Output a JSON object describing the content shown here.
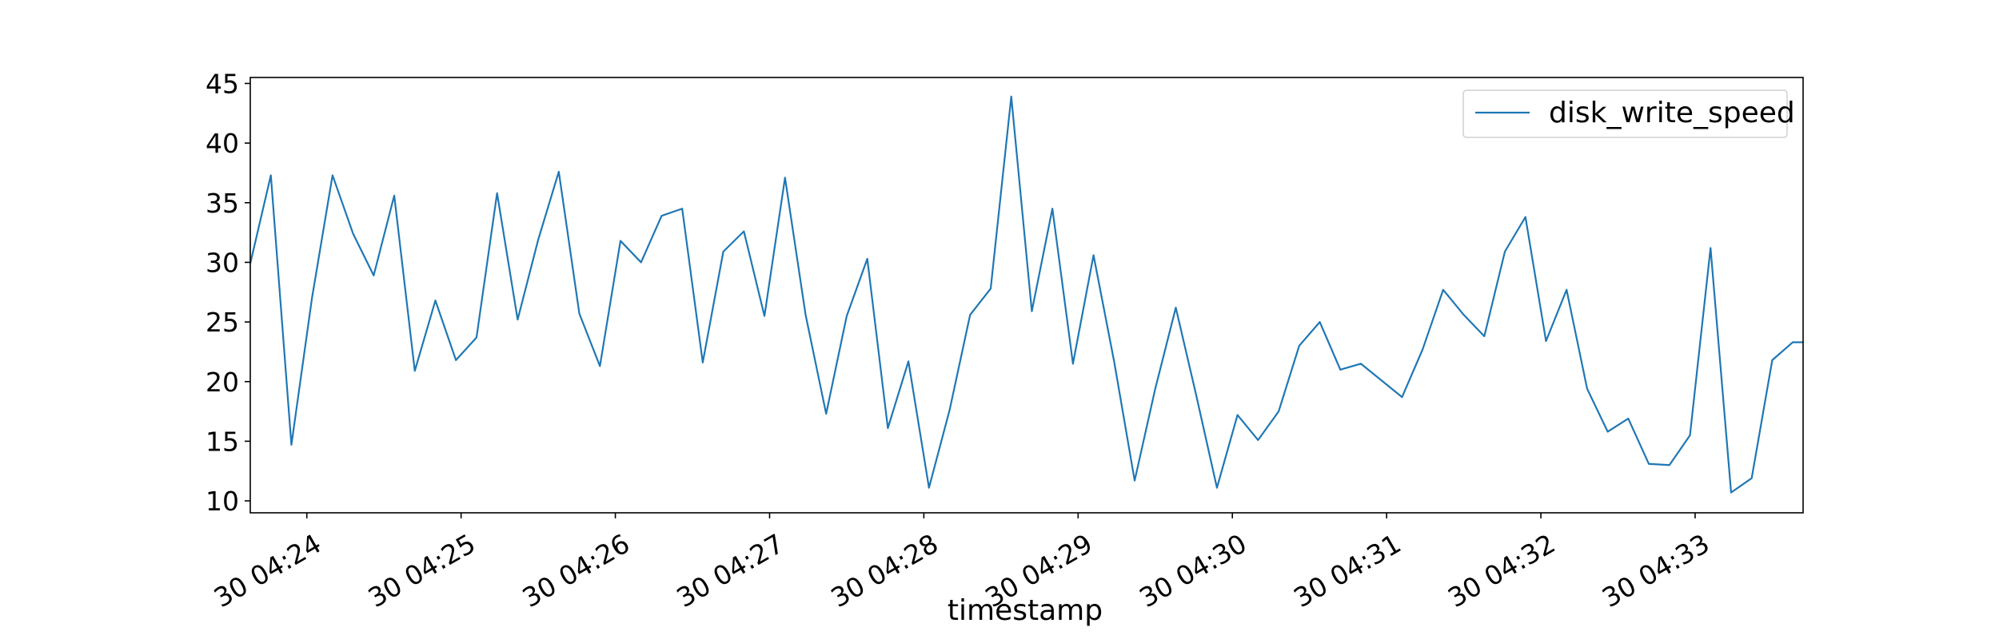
{
  "chart_data": {
    "type": "line",
    "title": "",
    "xlabel": "timestamp",
    "ylabel": "",
    "x_ticks": [
      "30 04:24",
      "30 04:25",
      "30 04:26",
      "30 04:27",
      "30 04:28",
      "30 04:29",
      "30 04:30",
      "30 04:31",
      "30 04:32",
      "30 04:33"
    ],
    "y_ticks": [
      10,
      15,
      20,
      25,
      30,
      35,
      40,
      45
    ],
    "ylim": [
      9,
      45.5
    ],
    "xlim": [
      "30 04:23:38",
      "30 04:33:42"
    ],
    "grid": false,
    "legend": {
      "position": "top-right",
      "entries": [
        "disk_write_speed"
      ]
    },
    "series": [
      {
        "name": "disk_write_speed",
        "color": "#1f77b4",
        "x": [
          "30 04:23:38",
          "30 04:23:46",
          "30 04:23:54",
          "30 04:24:02",
          "30 04:24:10",
          "30 04:24:18",
          "30 04:24:26",
          "30 04:24:34",
          "30 04:24:42",
          "30 04:24:50",
          "30 04:24:58",
          "30 04:25:06",
          "30 04:25:14",
          "30 04:25:22",
          "30 04:25:30",
          "30 04:25:38",
          "30 04:25:46",
          "30 04:25:54",
          "30 04:26:02",
          "30 04:26:10",
          "30 04:26:18",
          "30 04:26:26",
          "30 04:26:34",
          "30 04:26:42",
          "30 04:26:50",
          "30 04:26:58",
          "30 04:27:06",
          "30 04:27:14",
          "30 04:27:22",
          "30 04:27:30",
          "30 04:27:38",
          "30 04:27:46",
          "30 04:27:54",
          "30 04:28:02",
          "30 04:28:10",
          "30 04:28:18",
          "30 04:28:26",
          "30 04:28:34",
          "30 04:28:42",
          "30 04:28:50",
          "30 04:28:58",
          "30 04:29:06",
          "30 04:29:14",
          "30 04:29:22",
          "30 04:29:30",
          "30 04:29:38",
          "30 04:29:46",
          "30 04:29:54",
          "30 04:30:02",
          "30 04:30:10",
          "30 04:30:18",
          "30 04:30:26",
          "30 04:30:34",
          "30 04:30:42",
          "30 04:30:50",
          "30 04:30:58",
          "30 04:31:06",
          "30 04:31:14",
          "30 04:31:22",
          "30 04:31:30",
          "30 04:31:38",
          "30 04:31:46",
          "30 04:31:54",
          "30 04:32:02",
          "30 04:32:10",
          "30 04:32:18",
          "30 04:32:26",
          "30 04:32:34",
          "30 04:32:42",
          "30 04:32:50",
          "30 04:32:58",
          "30 04:33:06",
          "30 04:33:14",
          "30 04:33:22",
          "30 04:33:30",
          "30 04:33:38",
          "30 04:33:42"
        ],
        "values": [
          29.9,
          37.3,
          14.7,
          27.0,
          37.3,
          32.4,
          28.9,
          35.6,
          20.9,
          26.8,
          21.8,
          23.7,
          35.8,
          25.2,
          31.9,
          37.6,
          25.7,
          21.3,
          31.8,
          30.0,
          33.9,
          34.5,
          21.6,
          30.9,
          32.6,
          25.5,
          37.1,
          25.6,
          17.3,
          25.5,
          30.3,
          16.1,
          21.7,
          11.1,
          17.6,
          25.6,
          27.8,
          43.9,
          25.9,
          34.5,
          21.5,
          30.6,
          21.7,
          11.7,
          19.4,
          26.2,
          18.8,
          11.1,
          17.2,
          15.1,
          17.5,
          23.0,
          25.0,
          21.0,
          21.5,
          20.1,
          18.7,
          22.7,
          27.7,
          25.6,
          23.8,
          30.9,
          33.8,
          23.4,
          27.7,
          19.4,
          15.8,
          16.9,
          13.1,
          13.0,
          15.5,
          31.2,
          10.7,
          11.9,
          21.8,
          23.3,
          23.3
        ]
      }
    ]
  }
}
